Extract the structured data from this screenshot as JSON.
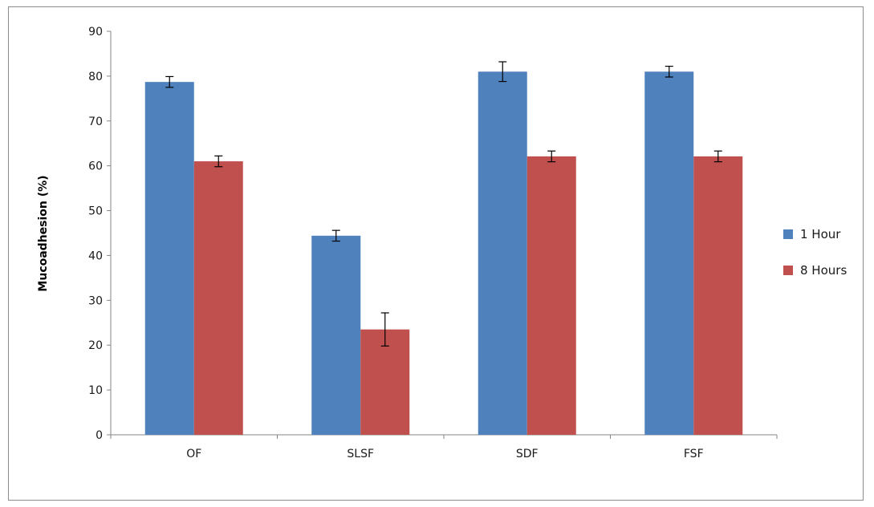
{
  "chart_data": {
    "type": "bar",
    "categories": [
      "OF",
      "SLSF",
      "SDF",
      "FSF"
    ],
    "series": [
      {
        "name": "1 Hour",
        "color": "#4F81BD",
        "values": [
          78.7,
          44.4,
          81.0,
          81.0
        ],
        "errors": [
          1.2,
          1.2,
          2.2,
          1.2
        ]
      },
      {
        "name": "8 Hours",
        "color": "#C0504D",
        "values": [
          61.0,
          23.5,
          62.1,
          62.1
        ],
        "errors": [
          1.2,
          3.7,
          1.2,
          1.2
        ]
      }
    ],
    "title": "",
    "xlabel": "",
    "ylabel": "Mucoadhesion  (%)",
    "ylim": [
      0,
      90
    ],
    "yticks": [
      0,
      10,
      20,
      30,
      40,
      50,
      60,
      70,
      80,
      90
    ],
    "grid": false,
    "legend_position": "right"
  }
}
